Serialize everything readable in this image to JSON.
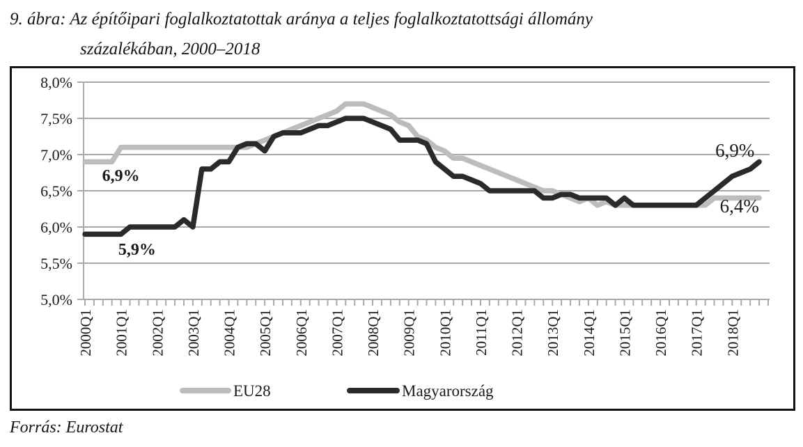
{
  "title": {
    "line1": "9. ábra: Az építőipari foglalkoztatottak aránya a teljes foglalkoztatottsági állomány",
    "line2": "százalékában, 2000–2018"
  },
  "footer": {
    "source": "Forrás: Eurostat"
  },
  "colors": {
    "eu28": "#bcbcbc",
    "magyarorszag": "#2a2a2a",
    "grid": "#a8a8a8",
    "text": "#1a1a1a",
    "frame": "#131313"
  },
  "chart_data": {
    "type": "line",
    "title": "Az építőipari foglalkoztatottak aránya a teljes foglalkoztatottsági állomány százalékában, 2000–2018",
    "xlabel": "",
    "ylabel": "",
    "ylim": [
      5.0,
      8.0
    ],
    "grid": true,
    "legend_position": "bottom",
    "y_tick_labels": [
      "8,0%",
      "7,5%",
      "7,0%",
      "6,5%",
      "6,0%",
      "5,5%",
      "5,0%"
    ],
    "x_tick_labels": [
      "2000Q1",
      "2001Q1",
      "2002Q1",
      "2003Q1",
      "2004Q1",
      "2005Q1",
      "2006Q1",
      "2007Q1",
      "2008Q1",
      "2009Q1",
      "2010Q1",
      "2011Q1",
      "2012Q1",
      "2013Q1",
      "2014Q1",
      "2015Q1",
      "2016Q1",
      "2017Q1",
      "2018Q1"
    ],
    "x": [
      "2000Q1",
      "2000Q2",
      "2000Q3",
      "2000Q4",
      "2001Q1",
      "2001Q2",
      "2001Q3",
      "2001Q4",
      "2002Q1",
      "2002Q2",
      "2002Q3",
      "2002Q4",
      "2003Q1",
      "2003Q2",
      "2003Q3",
      "2003Q4",
      "2004Q1",
      "2004Q2",
      "2004Q3",
      "2004Q4",
      "2005Q1",
      "2005Q2",
      "2005Q3",
      "2005Q4",
      "2006Q1",
      "2006Q2",
      "2006Q3",
      "2006Q4",
      "2007Q1",
      "2007Q2",
      "2007Q3",
      "2007Q4",
      "2008Q1",
      "2008Q2",
      "2008Q3",
      "2008Q4",
      "2009Q1",
      "2009Q2",
      "2009Q3",
      "2009Q4",
      "2010Q1",
      "2010Q2",
      "2010Q3",
      "2010Q4",
      "2011Q1",
      "2011Q2",
      "2011Q3",
      "2011Q4",
      "2012Q1",
      "2012Q2",
      "2012Q3",
      "2012Q4",
      "2013Q1",
      "2013Q2",
      "2013Q3",
      "2013Q4",
      "2014Q1",
      "2014Q2",
      "2014Q3",
      "2014Q4",
      "2015Q1",
      "2015Q2",
      "2015Q3",
      "2015Q4",
      "2016Q1",
      "2016Q2",
      "2016Q3",
      "2016Q4",
      "2017Q1",
      "2017Q2",
      "2017Q3",
      "2017Q4",
      "2018Q1",
      "2018Q2",
      "2018Q3",
      "2018Q4"
    ],
    "series": [
      {
        "name": "EU28",
        "color": "#bcbcbc",
        "values": [
          6.9,
          6.9,
          6.9,
          6.9,
          7.1,
          7.1,
          7.1,
          7.1,
          7.1,
          7.1,
          7.1,
          7.1,
          7.1,
          7.1,
          7.1,
          7.1,
          7.1,
          7.1,
          7.1,
          7.15,
          7.2,
          7.25,
          7.3,
          7.35,
          7.4,
          7.45,
          7.5,
          7.55,
          7.6,
          7.7,
          7.7,
          7.7,
          7.65,
          7.6,
          7.55,
          7.45,
          7.4,
          7.25,
          7.2,
          7.1,
          7.05,
          6.95,
          6.95,
          6.9,
          6.85,
          6.8,
          6.75,
          6.7,
          6.65,
          6.6,
          6.55,
          6.5,
          6.5,
          6.45,
          6.4,
          6.35,
          6.4,
          6.3,
          6.35,
          6.3,
          6.3,
          6.3,
          6.3,
          6.3,
          6.3,
          6.3,
          6.3,
          6.3,
          6.3,
          6.3,
          6.4,
          6.4,
          6.4,
          6.4,
          6.4,
          6.4
        ]
      },
      {
        "name": "Magyarország",
        "color": "#2a2a2a",
        "values": [
          5.9,
          5.9,
          5.9,
          5.9,
          5.9,
          6.0,
          6.0,
          6.0,
          6.0,
          6.0,
          6.0,
          6.1,
          6.0,
          6.8,
          6.8,
          6.9,
          6.9,
          7.1,
          7.15,
          7.15,
          7.05,
          7.25,
          7.3,
          7.3,
          7.3,
          7.35,
          7.4,
          7.4,
          7.45,
          7.5,
          7.5,
          7.5,
          7.45,
          7.4,
          7.35,
          7.2,
          7.2,
          7.2,
          7.15,
          6.9,
          6.8,
          6.7,
          6.7,
          6.65,
          6.6,
          6.5,
          6.5,
          6.5,
          6.5,
          6.5,
          6.5,
          6.4,
          6.4,
          6.45,
          6.45,
          6.4,
          6.4,
          6.4,
          6.4,
          6.3,
          6.4,
          6.3,
          6.3,
          6.3,
          6.3,
          6.3,
          6.3,
          6.3,
          6.3,
          6.4,
          6.5,
          6.6,
          6.7,
          6.75,
          6.8,
          6.9
        ]
      }
    ],
    "annotations": [
      {
        "text": "6,9%",
        "qi": 4,
        "v": 6.72,
        "bold": true
      },
      {
        "text": "5,9%",
        "qi": 5.8,
        "v": 5.7,
        "bold": true
      },
      {
        "text": "6,9%",
        "qi": 72.3,
        "v": 7.06,
        "bold": false
      },
      {
        "text": "6,4%",
        "qi": 72.8,
        "v": 6.29,
        "bold": false
      }
    ],
    "legend": [
      "EU28",
      "Magyarország"
    ]
  }
}
